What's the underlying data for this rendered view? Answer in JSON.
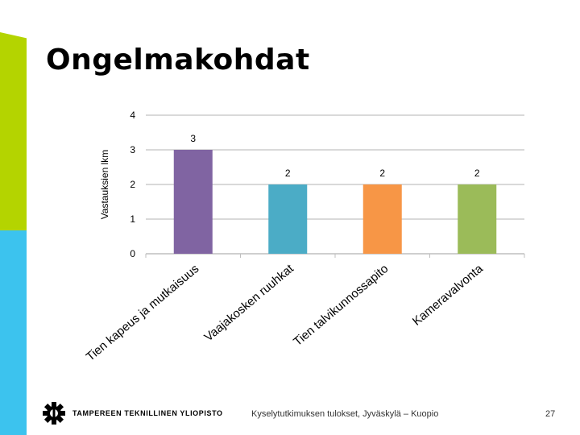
{
  "slide": {
    "title": "Ongelmakohdat",
    "footer": "Kyselytutkimuksen tulokset, Jyväskylä – Kuopio",
    "page_number": "27",
    "logo_text": "TAMPEREEN TEKNILLINEN YLIOPISTO",
    "accent_colors": [
      "#b4d400",
      "#3cc3ee"
    ]
  },
  "chart_data": {
    "type": "bar",
    "ylabel": "Vastauksien lkm",
    "ylim": [
      0,
      4
    ],
    "yticks": [
      0,
      1,
      2,
      3,
      4
    ],
    "grid": true,
    "categories": [
      "Tien kapeus ja mutkaisuus",
      "Vaajakosken ruuhkat",
      "Tien talvikunnossapito",
      "Kameravalvonta"
    ],
    "values": [
      3,
      2,
      2,
      2
    ],
    "colors": [
      "#8064a2",
      "#4bacc6",
      "#f79646",
      "#9bbb59"
    ]
  }
}
